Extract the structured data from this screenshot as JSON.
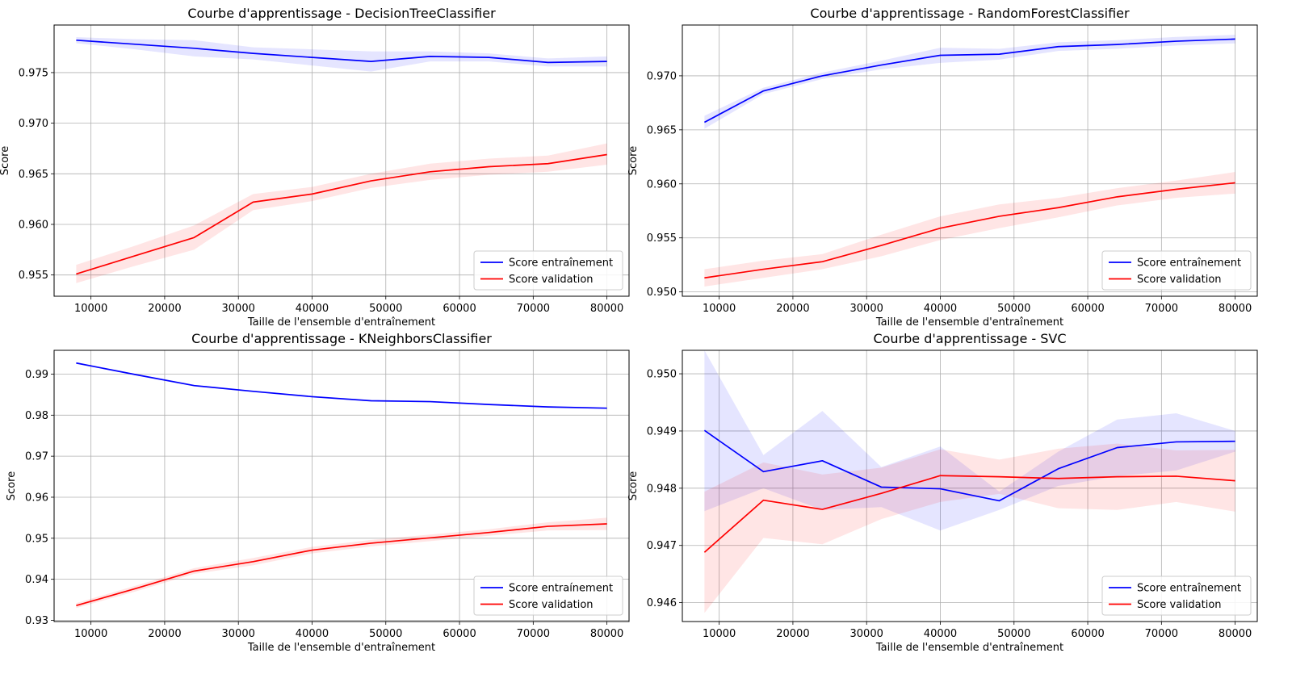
{
  "figure": {
    "x_axis_label": "Taille de l'ensemble d'entraînement",
    "y_axis_label": "Score",
    "legend_labels": [
      "Score entraînement",
      "Score validation"
    ],
    "series_colors": {
      "train": "#0000ff",
      "validation": "#ff0000"
    },
    "band_colors": {
      "train": "rgba(0,0,255,0.1)",
      "validation": "rgba(255,0,0,0.1)"
    },
    "grid_color": "#b0b0b0"
  },
  "chart_data": [
    {
      "type": "line",
      "title": "Courbe d'apprentissage - DecisionTreeClassifier",
      "xlabel": "Taille de l'ensemble d'entraînement",
      "ylabel": "Score",
      "xlim": [
        5000,
        83000
      ],
      "ylim": [
        0.9529,
        0.9797
      ],
      "xticks": [
        10000,
        20000,
        30000,
        40000,
        50000,
        60000,
        70000,
        80000
      ],
      "yticks": [
        0.955,
        0.96,
        0.965,
        0.97,
        0.975
      ],
      "ytick_labels": [
        "0.955",
        "0.960",
        "0.965",
        "0.970",
        "0.975"
      ],
      "grid": true,
      "legend_position": "lower right",
      "x": [
        8000,
        16000,
        24000,
        32000,
        40000,
        48000,
        56000,
        64000,
        72000,
        80000
      ],
      "series": [
        {
          "name": "Score entraînement",
          "color": "#0000ff",
          "values": [
            0.9782,
            0.9778,
            0.9774,
            0.9769,
            0.9765,
            0.9761,
            0.9766,
            0.9765,
            0.976,
            0.9761
          ],
          "lower": [
            0.9779,
            0.9773,
            0.9766,
            0.9763,
            0.9757,
            0.9751,
            0.9761,
            0.9761,
            0.9756,
            0.9756
          ],
          "upper": [
            0.9785,
            0.9783,
            0.9782,
            0.9775,
            0.9773,
            0.9771,
            0.9771,
            0.9769,
            0.9764,
            0.9766
          ]
        },
        {
          "name": "Score validation",
          "color": "#ff0000",
          "values": [
            0.9551,
            0.9569,
            0.9587,
            0.9622,
            0.963,
            0.9643,
            0.9652,
            0.9657,
            0.966,
            0.9669
          ],
          "lower": [
            0.9542,
            0.9559,
            0.9575,
            0.9614,
            0.9623,
            0.9636,
            0.9644,
            0.9649,
            0.9652,
            0.9659
          ],
          "upper": [
            0.956,
            0.9579,
            0.9599,
            0.963,
            0.9637,
            0.965,
            0.966,
            0.9665,
            0.9668,
            0.968
          ]
        }
      ]
    },
    {
      "type": "line",
      "title": "Courbe d'apprentissage - RandomForestClassifier",
      "xlabel": "Taille de l'ensemble d'entraînement",
      "ylabel": "Score",
      "xlim": [
        5000,
        83000
      ],
      "ylim": [
        0.9496,
        0.9747
      ],
      "xticks": [
        10000,
        20000,
        30000,
        40000,
        50000,
        60000,
        70000,
        80000
      ],
      "yticks": [
        0.95,
        0.955,
        0.96,
        0.965,
        0.97
      ],
      "ytick_labels": [
        "0.950",
        "0.955",
        "0.960",
        "0.965",
        "0.970"
      ],
      "grid": true,
      "legend_position": "lower right",
      "x": [
        8000,
        16000,
        24000,
        32000,
        40000,
        48000,
        56000,
        64000,
        72000,
        80000
      ],
      "series": [
        {
          "name": "Score entraînement",
          "color": "#0000ff",
          "values": [
            0.9657,
            0.9686,
            0.97,
            0.971,
            0.9719,
            0.972,
            0.9727,
            0.9729,
            0.9732,
            0.9734
          ],
          "lower": [
            0.9651,
            0.9683,
            0.9697,
            0.9706,
            0.9712,
            0.9715,
            0.9723,
            0.9725,
            0.9728,
            0.973
          ],
          "upper": [
            0.9663,
            0.9689,
            0.9703,
            0.9714,
            0.9726,
            0.9725,
            0.9731,
            0.9733,
            0.9736,
            0.9738
          ]
        },
        {
          "name": "Score validation",
          "color": "#ff0000",
          "values": [
            0.9513,
            0.9521,
            0.9528,
            0.9543,
            0.9559,
            0.957,
            0.9578,
            0.9588,
            0.9595,
            0.9601
          ],
          "lower": [
            0.9505,
            0.9513,
            0.9521,
            0.9533,
            0.9548,
            0.9559,
            0.9569,
            0.958,
            0.9587,
            0.9591
          ],
          "upper": [
            0.9521,
            0.9529,
            0.9535,
            0.9553,
            0.957,
            0.9581,
            0.9587,
            0.9596,
            0.9603,
            0.9611
          ]
        }
      ]
    },
    {
      "type": "line",
      "title": "Courbe d'apprentissage - KNeighborsClassifier",
      "xlabel": "Taille de l'ensemble d'entraînement",
      "ylabel": "Score",
      "xlim": [
        5000,
        83000
      ],
      "ylim": [
        0.9297,
        0.9958
      ],
      "xticks": [
        10000,
        20000,
        30000,
        40000,
        50000,
        60000,
        70000,
        80000
      ],
      "yticks": [
        0.93,
        0.94,
        0.95,
        0.96,
        0.97,
        0.98,
        0.99
      ],
      "ytick_labels": [
        "0.93",
        "0.94",
        "0.95",
        "0.96",
        "0.97",
        "0.98",
        "0.99"
      ],
      "grid": true,
      "legend_position": "lower right",
      "x": [
        8000,
        16000,
        24000,
        32000,
        40000,
        48000,
        56000,
        64000,
        72000,
        80000
      ],
      "series": [
        {
          "name": "Score entraínement",
          "color": "#0000ff",
          "values": [
            0.9927,
            0.9899,
            0.9872,
            0.9858,
            0.9845,
            0.9835,
            0.9833,
            0.9826,
            0.982,
            0.9817
          ],
          "lower": [
            0.9925,
            0.9897,
            0.987,
            0.9856,
            0.9843,
            0.9833,
            0.9831,
            0.9824,
            0.9818,
            0.9815
          ],
          "upper": [
            0.9929,
            0.9901,
            0.9874,
            0.986,
            0.9847,
            0.9837,
            0.9835,
            0.9828,
            0.9822,
            0.9819
          ]
        },
        {
          "name": "Score validation",
          "color": "#ff0000",
          "values": [
            0.9336,
            0.9377,
            0.942,
            0.9443,
            0.9471,
            0.9488,
            0.9501,
            0.9514,
            0.9529,
            0.9535
          ],
          "lower": [
            0.933,
            0.937,
            0.9413,
            0.9434,
            0.9463,
            0.948,
            0.9493,
            0.9506,
            0.9519,
            0.952
          ],
          "upper": [
            0.9342,
            0.9384,
            0.9427,
            0.9452,
            0.9479,
            0.9496,
            0.9509,
            0.9522,
            0.9539,
            0.955
          ]
        }
      ]
    },
    {
      "type": "line",
      "title": "Courbe d'apprentissage - SVC",
      "xlabel": "Taille de l'ensemble d'entraînement",
      "ylabel": "Score",
      "xlim": [
        5000,
        83000
      ],
      "ylim": [
        0.94567,
        0.95041
      ],
      "xticks": [
        10000,
        20000,
        30000,
        40000,
        50000,
        60000,
        70000,
        80000
      ],
      "yticks": [
        0.946,
        0.947,
        0.948,
        0.949,
        0.95
      ],
      "ytick_labels": [
        "0.946",
        "0.947",
        "0.948",
        "0.949",
        "0.950"
      ],
      "grid": true,
      "legend_position": "lower right",
      "x": [
        8000,
        16000,
        24000,
        32000,
        40000,
        48000,
        56000,
        64000,
        72000,
        80000
      ],
      "series": [
        {
          "name": "Score entraînement",
          "color": "#0000ff",
          "values": [
            0.94901,
            0.94829,
            0.94848,
            0.94802,
            0.94799,
            0.94778,
            0.94834,
            0.94871,
            0.94881,
            0.94882
          ],
          "lower": [
            0.9476,
            0.948,
            0.94762,
            0.94767,
            0.94726,
            0.94762,
            0.94804,
            0.94821,
            0.94831,
            0.94864
          ],
          "upper": [
            0.95041,
            0.94858,
            0.94935,
            0.94837,
            0.94873,
            0.94794,
            0.94864,
            0.9492,
            0.94931,
            0.949
          ]
        },
        {
          "name": "Score validation",
          "color": "#ff0000",
          "values": [
            0.94688,
            0.94779,
            0.94763,
            0.94791,
            0.94822,
            0.9482,
            0.94817,
            0.9482,
            0.94821,
            0.94813
          ],
          "lower": [
            0.94582,
            0.94713,
            0.94702,
            0.94746,
            0.94776,
            0.9479,
            0.94765,
            0.94762,
            0.94776,
            0.94759
          ],
          "upper": [
            0.94794,
            0.94845,
            0.94824,
            0.94836,
            0.94868,
            0.9485,
            0.94869,
            0.94878,
            0.94866,
            0.94867
          ]
        }
      ]
    }
  ]
}
